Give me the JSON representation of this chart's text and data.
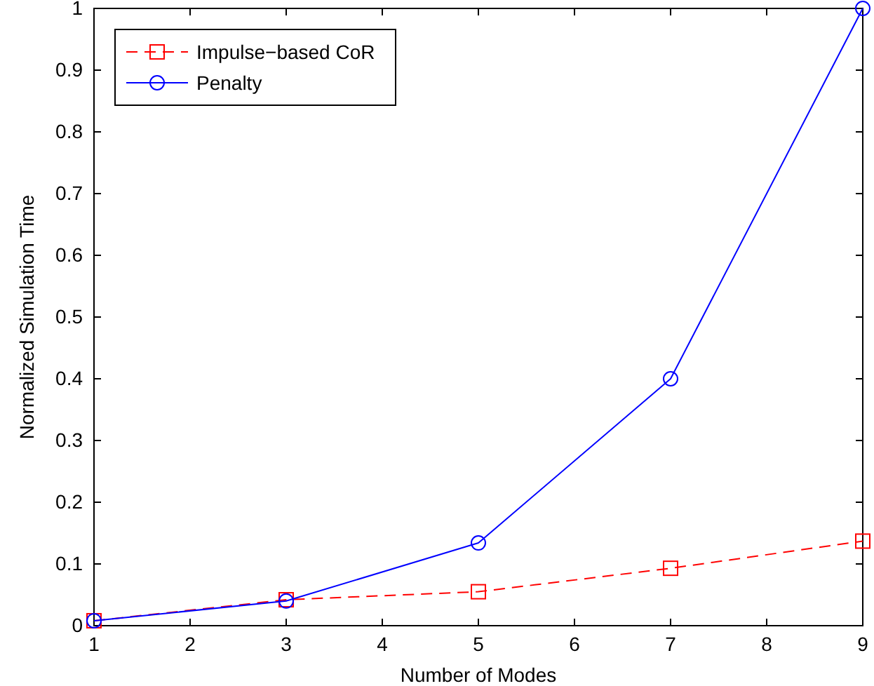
{
  "chart_data": {
    "type": "line",
    "xlabel": "Number of Modes",
    "ylabel": "Normalized Simulation Time",
    "x": [
      1,
      3,
      5,
      7,
      9
    ],
    "xlim": [
      1,
      9
    ],
    "xticks": [
      1,
      2,
      3,
      4,
      5,
      6,
      7,
      8,
      9
    ],
    "ylim": [
      0,
      1
    ],
    "yticks": [
      0,
      0.1,
      0.2,
      0.3,
      0.4,
      0.5,
      0.6,
      0.7,
      0.8,
      0.9,
      1
    ],
    "legend": "top left",
    "grid": false,
    "series": [
      {
        "name": "Impulse−based CoR",
        "color": "#ff0000",
        "values": [
          0.008,
          0.042,
          0.055,
          0.093,
          0.137
        ],
        "marker": "square",
        "line_style": "dashed"
      },
      {
        "name": "Penalty",
        "color": "#0000ff",
        "values": [
          0.008,
          0.04,
          0.134,
          0.4,
          1
        ],
        "marker": "circle",
        "line_style": "solid"
      }
    ]
  }
}
